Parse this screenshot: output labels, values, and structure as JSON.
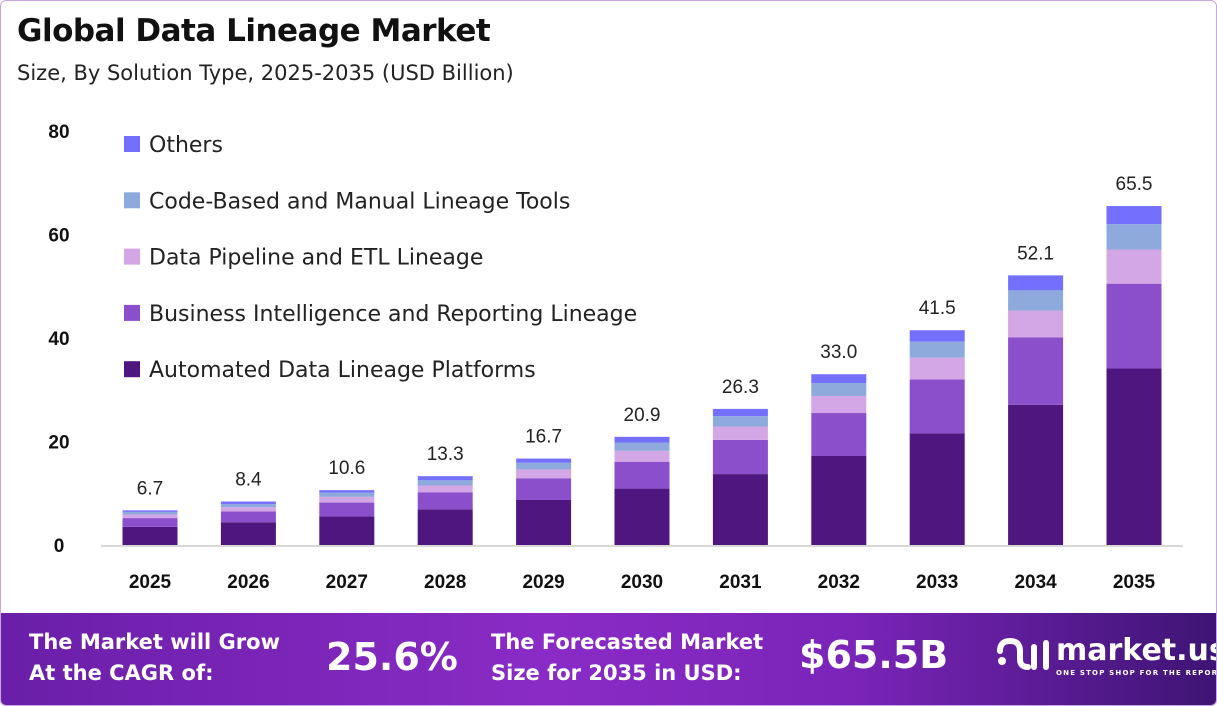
{
  "title": "Global Data Lineage Market",
  "subtitle": "Size, By Solution Type, 2025-2035 (USD Billion)",
  "chart_data": {
    "type": "bar",
    "stacked": true,
    "categories": [
      "2025",
      "2026",
      "2027",
      "2028",
      "2029",
      "2030",
      "2031",
      "2032",
      "2033",
      "2034",
      "2035"
    ],
    "totals": [
      6.7,
      8.4,
      10.6,
      13.3,
      16.7,
      20.9,
      26.3,
      33.0,
      41.5,
      52.1,
      65.5
    ],
    "total_labels": [
      "6.7",
      "8.4",
      "10.6",
      "13.3",
      "16.7",
      "20.9",
      "26.3",
      "33.0",
      "41.5",
      "52.1",
      "65.5"
    ],
    "series": [
      {
        "name": "Automated Data Lineage Platforms",
        "color": "#4f1680",
        "values": [
          3.5,
          4.4,
          5.5,
          6.9,
          8.7,
          10.9,
          13.7,
          17.2,
          21.6,
          27.1,
          34.1
        ]
      },
      {
        "name": "Business Intelligence and Reporting Lineage",
        "color": "#8b4fcc",
        "values": [
          1.7,
          2.1,
          2.7,
          3.3,
          4.2,
          5.2,
          6.6,
          8.3,
          10.4,
          13.0,
          16.4
        ]
      },
      {
        "name": "Data Pipeline and ETL Lineage",
        "color": "#d3a6e6",
        "values": [
          0.7,
          0.8,
          1.1,
          1.3,
          1.7,
          2.1,
          2.6,
          3.3,
          4.2,
          5.2,
          6.6
        ]
      },
      {
        "name": "Code-Based and Manual Lineage Tools",
        "color": "#8eaadc",
        "values": [
          0.5,
          0.6,
          0.8,
          1.0,
          1.3,
          1.6,
          2.0,
          2.5,
          3.1,
          3.9,
          4.9
        ]
      },
      {
        "name": "Others",
        "color": "#7470fd",
        "values": [
          0.3,
          0.5,
          0.5,
          0.8,
          0.8,
          1.1,
          1.4,
          1.7,
          2.2,
          2.9,
          3.5
        ]
      }
    ],
    "ylim": [
      0,
      80
    ],
    "yticks": [
      "0",
      "20",
      "40",
      "60",
      "80"
    ],
    "grid": false,
    "legend_position": "top-left"
  },
  "footer": {
    "cagr_label_line1": "The Market will Grow",
    "cagr_label_line2": "At the CAGR of:",
    "cagr_value": "25.6%",
    "forecast_label_line1": "The Forecasted Market",
    "forecast_label_line2": "Size for 2035 in USD:",
    "forecast_value": "$65.5B",
    "brand_name": "market.us",
    "brand_tagline": "ONE STOP SHOP FOR THE REPORTS"
  }
}
